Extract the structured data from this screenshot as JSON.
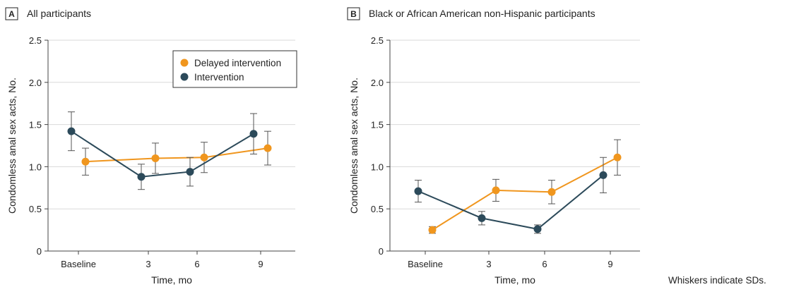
{
  "note": "Whiskers indicate SDs.",
  "colors": {
    "delayed": "#F0961E",
    "intervention": "#2C4A5A",
    "grid": "#d9d9d9",
    "axis": "#444444",
    "errorbar": "#555555"
  },
  "chart_data": [
    {
      "type": "line",
      "panel_letter": "A",
      "title": "All participants",
      "xlabel": "Time, mo",
      "ylabel": "Condomless anal sex acts, No.",
      "categories": [
        "Baseline",
        "3",
        "6",
        "9"
      ],
      "ylim": [
        0,
        2.5
      ],
      "yticks": [
        "0",
        "0.5",
        "1.0",
        "1.5",
        "2.0",
        "2.5"
      ],
      "grid": "horizontal",
      "legend": "top-right",
      "series": [
        {
          "name": "Delayed intervention",
          "color": "#F0961E",
          "values": [
            1.06,
            1.1,
            1.11,
            1.22
          ],
          "sd": [
            0.16,
            0.18,
            0.18,
            0.2
          ]
        },
        {
          "name": "Intervention",
          "color": "#2C4A5A",
          "values": [
            1.42,
            0.88,
            0.94,
            1.39
          ],
          "sd": [
            0.23,
            0.15,
            0.17,
            0.24
          ]
        }
      ]
    },
    {
      "type": "line",
      "panel_letter": "B",
      "title": "Black or African American non-Hispanic participants",
      "xlabel": "Time, mo",
      "ylabel": "Condomless anal sex acts, No.",
      "categories": [
        "Baseline",
        "3",
        "6",
        "9"
      ],
      "ylim": [
        0,
        2.5
      ],
      "yticks": [
        "0",
        "0.5",
        "1.0",
        "1.5",
        "2.0",
        "2.5"
      ],
      "grid": "horizontal",
      "legend": "none",
      "series": [
        {
          "name": "Delayed intervention",
          "color": "#F0961E",
          "values": [
            0.25,
            0.72,
            0.7,
            1.11
          ],
          "sd": [
            0.04,
            0.13,
            0.14,
            0.21
          ]
        },
        {
          "name": "Intervention",
          "color": "#2C4A5A",
          "values": [
            0.71,
            0.39,
            0.26,
            0.9
          ],
          "sd": [
            0.13,
            0.08,
            0.05,
            0.21
          ]
        }
      ]
    }
  ]
}
